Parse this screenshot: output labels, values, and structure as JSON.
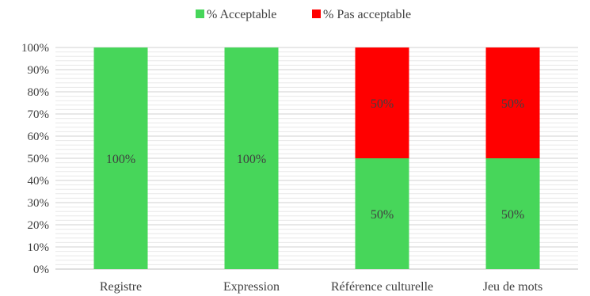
{
  "chart_data": {
    "type": "bar",
    "stacked": true,
    "percent": true,
    "categories": [
      "Registre",
      "Expression",
      "Référence culturelle",
      "Jeu de mots"
    ],
    "series": [
      {
        "name": "% Acceptable",
        "color": "#47d65a",
        "values": [
          100,
          100,
          50,
          50
        ],
        "labels": [
          "100%",
          "100%",
          "50%",
          "50%"
        ]
      },
      {
        "name": "% Pas acceptable",
        "color": "#ff0000",
        "values": [
          0,
          0,
          50,
          50
        ],
        "labels": [
          "",
          "",
          "50%",
          "50%"
        ]
      }
    ],
    "ylim": [
      0,
      100
    ],
    "yticks": [
      "0%",
      "10%",
      "20%",
      "30%",
      "40%",
      "50%",
      "60%",
      "70%",
      "80%",
      "90%",
      "100%"
    ],
    "grid": true,
    "legend_position": "top"
  }
}
